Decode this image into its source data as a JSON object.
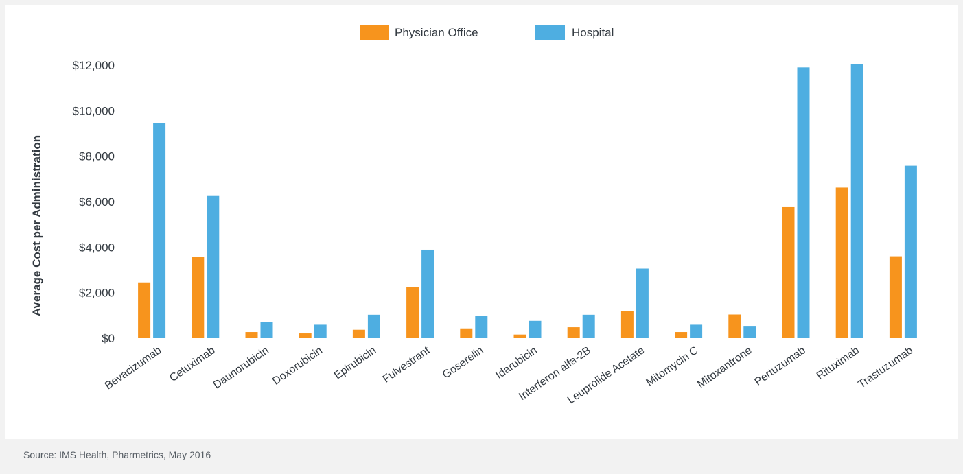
{
  "chart_data": {
    "type": "bar",
    "title": "",
    "xlabel": "",
    "ylabel": "Average Cost per Administration",
    "ylim": [
      0,
      12000
    ],
    "yticks": [
      0,
      2000,
      4000,
      6000,
      8000,
      10000,
      12000
    ],
    "ytick_labels": [
      "$0",
      "$2,000",
      "$4,000",
      "$6,000",
      "$8,000",
      "$10,000",
      "$12,000"
    ],
    "grid": false,
    "legend_position": "top-center",
    "categories": [
      "Bevacizumab",
      "Cetuximab",
      "Daunorubicin",
      "Doxorubicin",
      "Epirubicin",
      "Fulvestrant",
      "Goserelin",
      "Idarubicin",
      "Interferon alfa-2B",
      "Leuprolide Acetate",
      "Mitomycin C",
      "Mitoxantrone",
      "Pertuzumab",
      "Rituximab",
      "Trastuzumab"
    ],
    "series": [
      {
        "name": "Physician Office",
        "color": "#f7941d",
        "values": [
          2450,
          3570,
          270,
          210,
          370,
          2250,
          430,
          160,
          480,
          1200,
          270,
          1040,
          5760,
          6620,
          3600
        ]
      },
      {
        "name": "Hospital",
        "color": "#4eaee1",
        "values": [
          9450,
          6250,
          700,
          590,
          1030,
          3890,
          970,
          760,
          1030,
          3060,
          590,
          540,
          11900,
          12050,
          7580
        ]
      }
    ]
  },
  "source": "Source: IMS Health, Pharmetrics, May 2016"
}
